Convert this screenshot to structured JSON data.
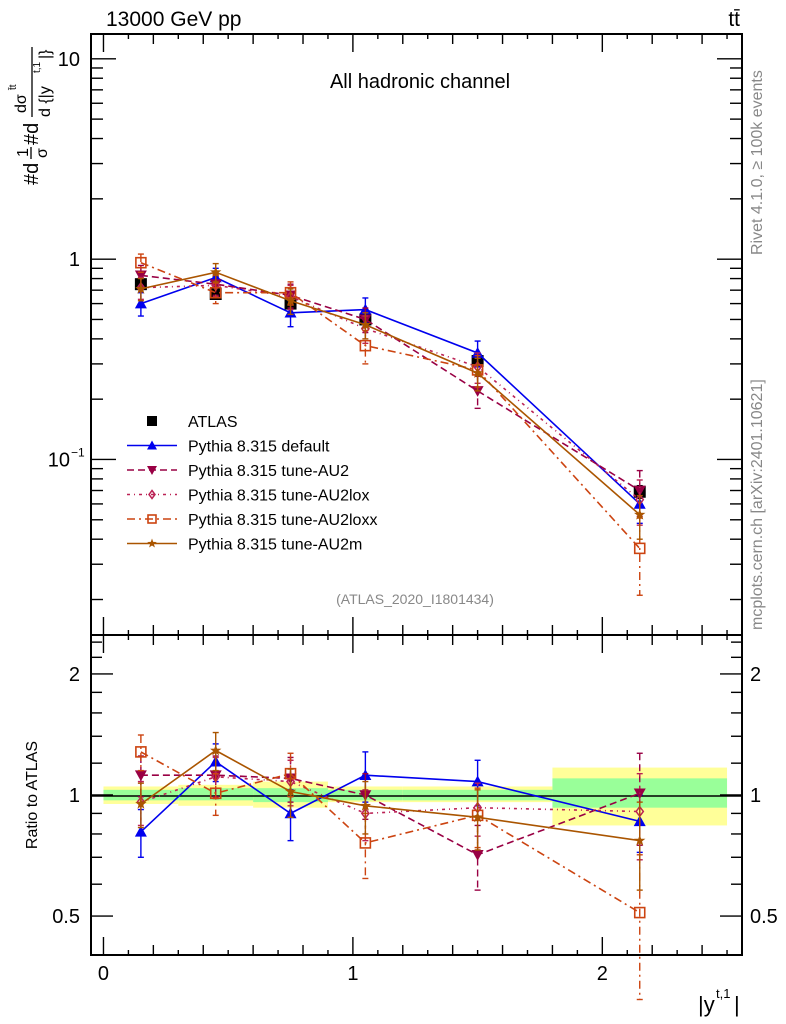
{
  "header": {
    "left_label": "13000 GeV pp",
    "right_label": "tt̄"
  },
  "side_labels": {
    "top": "Rivet 4.1.0, ≥ 100k events",
    "bottom": "mcplots.cern.ch [arXiv:2401.10621]"
  },
  "chart_data": [
    {
      "panel": "main",
      "type": "line",
      "title": "All hadronic channel",
      "analysis_tag": "(ATLAS_2020_I1801434)",
      "ylabel": "#d1/σ #d dσ^{tt̄} / d{|y^{t,1}|}",
      "ylabel_parts": {
        "prefix": "#d",
        "num": "1",
        "den": "σ",
        "mid": "#d",
        "num2": "dσ",
        "sup2": "t̄t",
        "den2": "d {|y",
        "den2_sup": "t,1",
        "den2_end": "|}"
      },
      "xlabel": "|y^{t,1}|",
      "yscale": "log",
      "ylim": [
        0.0133,
        13.3
      ],
      "xlim": [
        -0.05,
        2.56
      ],
      "ytick_labels": [
        {
          "value": 10,
          "label": "10"
        },
        {
          "value": 1,
          "label": "1"
        },
        {
          "value": 0.1,
          "label": "10",
          "sup": "−1"
        }
      ],
      "legend_position": "lower-left",
      "bin_edges": [
        0,
        0.3,
        0.6,
        0.9,
        1.2,
        1.8,
        2.5
      ],
      "x": [
        0.15,
        0.45,
        0.75,
        1.05,
        1.5,
        2.15
      ],
      "series": [
        {
          "name": "ATLAS",
          "color": "#000000",
          "marker": "square",
          "line": "none",
          "values": [
            0.75,
            0.67,
            0.6,
            0.5,
            0.31,
            0.069
          ],
          "errors": [
            0.03,
            0.03,
            0.03,
            0.03,
            0.02,
            0.005
          ]
        },
        {
          "name": "Pythia 8.315 default",
          "color": "#0000ee",
          "marker": "triangle-up",
          "line": "solid",
          "values": [
            0.6,
            0.81,
            0.54,
            0.56,
            0.34,
            0.06
          ],
          "errors": [
            0.08,
            0.09,
            0.08,
            0.08,
            0.05,
            0.012
          ]
        },
        {
          "name": "Pythia 8.315 tune-AU2",
          "color": "#990044",
          "marker": "triangle-down",
          "line": "dashed",
          "values": [
            0.83,
            0.75,
            0.66,
            0.5,
            0.22,
            0.07
          ],
          "errors": [
            0.1,
            0.09,
            0.09,
            0.07,
            0.04,
            0.018
          ]
        },
        {
          "name": "Pythia 8.315 tune-AU2lox",
          "color": "#bb2255",
          "marker": "diamond-open",
          "line": "dashdot",
          "values": [
            0.72,
            0.74,
            0.65,
            0.45,
            0.29,
            0.063
          ],
          "errors": [
            0.09,
            0.09,
            0.09,
            0.07,
            0.05,
            0.016
          ]
        },
        {
          "name": "Pythia 8.315 tune-AU2loxx",
          "color": "#cc4411",
          "marker": "square-open",
          "line": "dashdotdot",
          "values": [
            0.96,
            0.68,
            0.68,
            0.37,
            0.28,
            0.036
          ],
          "errors": [
            0.1,
            0.08,
            0.09,
            0.07,
            0.05,
            0.015
          ]
        },
        {
          "name": "Pythia 8.315 tune-AU2m",
          "color": "#aa5500",
          "marker": "star",
          "line": "solid",
          "values": [
            0.71,
            0.86,
            0.62,
            0.47,
            0.27,
            0.053
          ],
          "errors": [
            0.09,
            0.09,
            0.09,
            0.07,
            0.05,
            0.013
          ]
        }
      ]
    },
    {
      "panel": "ratio",
      "type": "line",
      "ylabel": "Ratio to ATLAS",
      "xlabel": "|y^{t,1}|",
      "yscale": "log",
      "ylim": [
        0.4,
        2.5
      ],
      "xlim": [
        -0.05,
        2.56
      ],
      "ytick_labels": [
        {
          "value": 2,
          "label": "2"
        },
        {
          "value": 1,
          "label": "1"
        },
        {
          "value": 0.5,
          "label": "0.5"
        }
      ],
      "xtick_labels": [
        {
          "value": 0,
          "label": "0"
        },
        {
          "value": 1,
          "label": "1"
        },
        {
          "value": 2,
          "label": "2"
        }
      ],
      "bin_edges": [
        0,
        0.3,
        0.6,
        0.9,
        1.2,
        1.8,
        2.5
      ],
      "band_stat": [
        [
          0.97,
          1.03
        ],
        [
          0.97,
          1.04
        ],
        [
          0.96,
          1.04
        ],
        [
          0.97,
          1.03
        ],
        [
          0.97,
          1.03
        ],
        [
          0.93,
          1.1
        ]
      ],
      "band_total": [
        [
          0.95,
          1.05
        ],
        [
          0.94,
          1.06
        ],
        [
          0.93,
          1.08
        ],
        [
          0.96,
          1.05
        ],
        [
          0.96,
          1.05
        ],
        [
          0.84,
          1.17
        ]
      ],
      "band_colors": {
        "stat": "#99ff99",
        "total": "#ffff99"
      },
      "x": [
        0.15,
        0.45,
        0.75,
        1.05,
        1.5,
        2.15
      ],
      "series": [
        {
          "name": "Pythia 8.315 default",
          "color": "#0000ee",
          "marker": "triangle-up",
          "line": "solid",
          "values": [
            0.81,
            1.21,
            0.9,
            1.12,
            1.08,
            0.86
          ],
          "errors": [
            0.11,
            0.13,
            0.13,
            0.16,
            0.14,
            0.14
          ]
        },
        {
          "name": "Pythia 8.315 tune-AU2",
          "color": "#990044",
          "marker": "triangle-down",
          "line": "dashed",
          "values": [
            1.12,
            1.12,
            1.1,
            1.0,
            0.71,
            1.01
          ],
          "errors": [
            0.13,
            0.13,
            0.14,
            0.13,
            0.13,
            0.26
          ]
        },
        {
          "name": "Pythia 8.315 tune-AU2lox",
          "color": "#bb2255",
          "marker": "diamond-open",
          "line": "dashdot",
          "values": [
            0.96,
            1.11,
            1.08,
            0.9,
            0.93,
            0.91
          ],
          "errors": [
            0.12,
            0.13,
            0.14,
            0.13,
            0.14,
            0.22
          ]
        },
        {
          "name": "Pythia 8.315 tune-AU2loxx",
          "color": "#cc4411",
          "marker": "square-open",
          "line": "dashdotdot",
          "values": [
            1.28,
            1.01,
            1.13,
            0.76,
            0.89,
            0.51
          ],
          "errors": [
            0.13,
            0.12,
            0.14,
            0.14,
            0.15,
            0.2
          ]
        },
        {
          "name": "Pythia 8.315 tune-AU2m",
          "color": "#aa5500",
          "marker": "star",
          "line": "solid",
          "values": [
            0.95,
            1.29,
            1.02,
            0.94,
            0.88,
            0.77
          ],
          "errors": [
            0.12,
            0.14,
            0.14,
            0.14,
            0.15,
            0.19
          ]
        }
      ]
    }
  ]
}
